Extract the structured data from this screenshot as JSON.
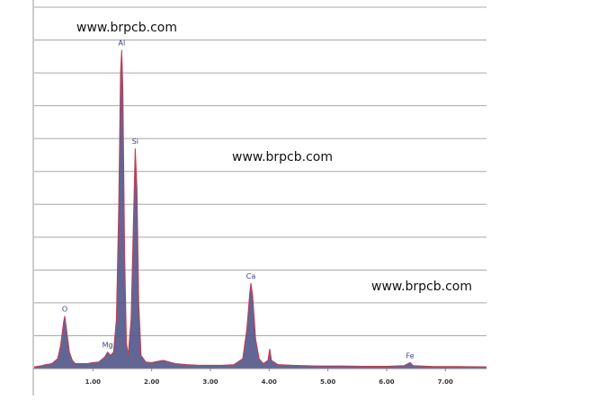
{
  "chart_data": {
    "type": "spectrum",
    "x": [
      0.0,
      0.1,
      0.2,
      0.3,
      0.4,
      0.45,
      0.5,
      0.52,
      0.55,
      0.6,
      0.65,
      0.7,
      0.8,
      0.9,
      1.0,
      1.1,
      1.2,
      1.25,
      1.3,
      1.35,
      1.4,
      1.44,
      1.47,
      1.49,
      1.51,
      1.54,
      1.57,
      1.6,
      1.65,
      1.69,
      1.72,
      1.75,
      1.78,
      1.82,
      1.9,
      2.0,
      2.1,
      2.2,
      2.3,
      2.4,
      2.6,
      2.8,
      3.0,
      3.2,
      3.4,
      3.55,
      3.62,
      3.67,
      3.69,
      3.72,
      3.77,
      3.83,
      3.9,
      3.98,
      4.01,
      4.04,
      4.15,
      4.4,
      4.8,
      5.2,
      5.6,
      6.0,
      6.3,
      6.4,
      6.45,
      6.8,
      7.2,
      7.7
    ],
    "values": [
      0.05,
      0.08,
      0.12,
      0.15,
      0.3,
      0.7,
      1.4,
      1.6,
      1.2,
      0.5,
      0.25,
      0.15,
      0.15,
      0.15,
      0.18,
      0.2,
      0.35,
      0.5,
      0.4,
      0.5,
      1.5,
      5.0,
      9.0,
      9.7,
      8.5,
      3.5,
      0.8,
      0.4,
      1.5,
      4.5,
      6.7,
      5.5,
      2.0,
      0.4,
      0.2,
      0.18,
      0.22,
      0.25,
      0.2,
      0.15,
      0.12,
      0.1,
      0.1,
      0.1,
      0.12,
      0.3,
      1.2,
      2.3,
      2.6,
      2.2,
      0.9,
      0.3,
      0.15,
      0.25,
      0.6,
      0.25,
      0.12,
      0.1,
      0.08,
      0.08,
      0.07,
      0.07,
      0.09,
      0.18,
      0.09,
      0.06,
      0.06,
      0.05
    ],
    "color": "#50558a",
    "line_color": "#c43a4e",
    "xlim": [
      0,
      7.7
    ],
    "ylim": [
      0,
      11
    ],
    "xticks": [
      {
        "value": 1,
        "label": "1.00"
      },
      {
        "value": 2,
        "label": "2.00"
      },
      {
        "value": 3,
        "label": "3.00"
      },
      {
        "value": 4,
        "label": "4.00"
      },
      {
        "value": 5,
        "label": "5.00"
      },
      {
        "value": 6,
        "label": "6.00"
      },
      {
        "value": 7,
        "label": "7.00"
      }
    ],
    "yticks": [
      0,
      1,
      2,
      3,
      4,
      5,
      6,
      7,
      8,
      9,
      10,
      11
    ],
    "grid": true,
    "peak_labels": [
      {
        "text": "O",
        "x": 0.52
      },
      {
        "text": "Mg",
        "x": 1.25
      },
      {
        "text": "Al",
        "x": 1.49
      },
      {
        "text": "Si",
        "x": 1.72
      },
      {
        "text": "Ca",
        "x": 3.69
      },
      {
        "text": "Fe",
        "x": 6.4
      }
    ],
    "watermarks": [
      "www.brpcb.com",
      "www.brpcb.com",
      "www.brpcb.com"
    ]
  }
}
